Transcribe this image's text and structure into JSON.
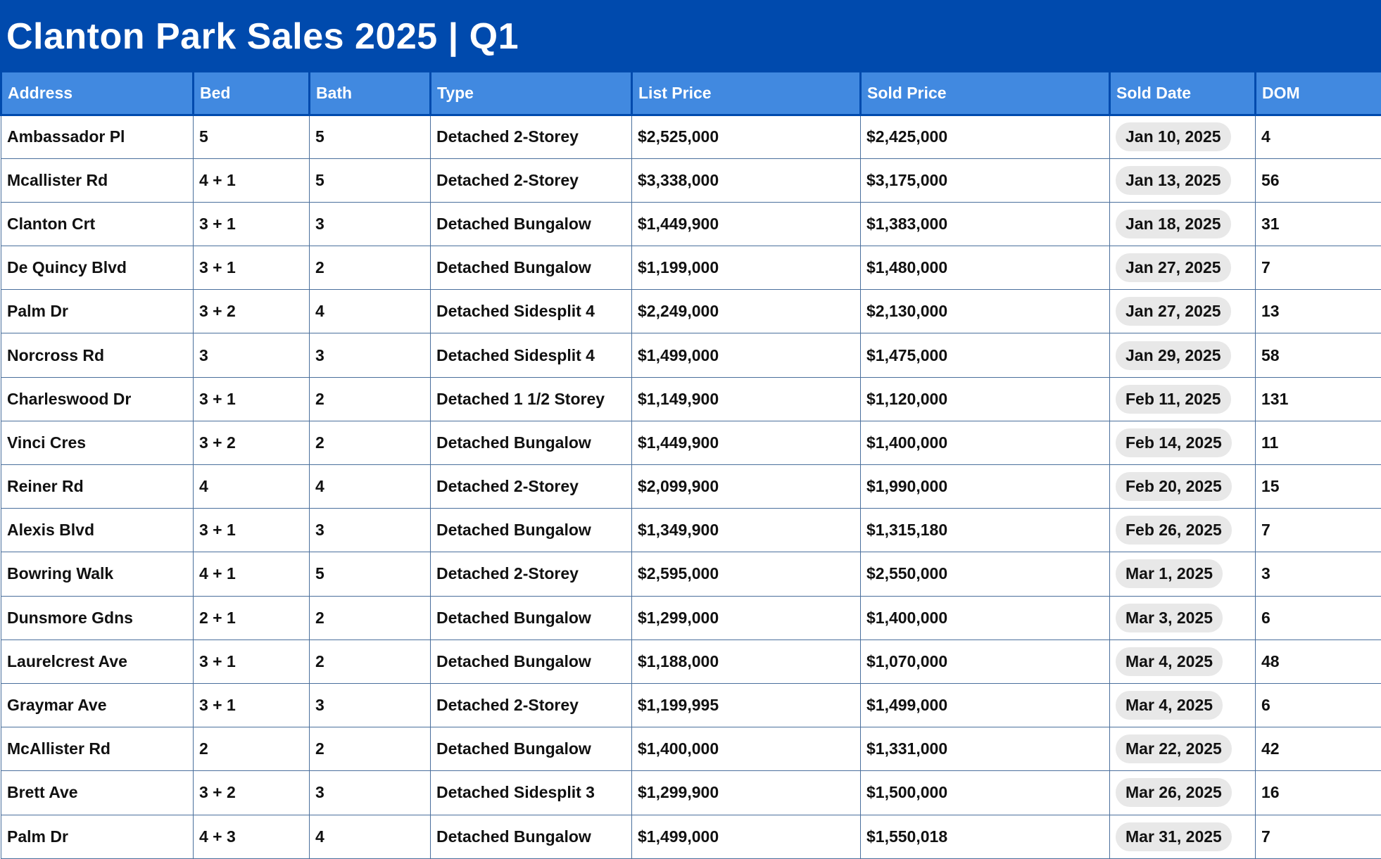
{
  "title": "Clanton Park Sales 2025 | Q1",
  "columns": [
    "Address",
    "Bed",
    "Bath",
    "Type",
    "List Price",
    "Sold Price",
    "Sold Date",
    "DOM"
  ],
  "rows": [
    [
      "Ambassador Pl",
      "5",
      "5",
      "Detached 2-Storey",
      "$2,525,000",
      "$2,425,000",
      "Jan 10, 2025",
      "4"
    ],
    [
      "Mcallister Rd",
      "4 + 1",
      "5",
      "Detached 2-Storey",
      "$3,338,000",
      "$3,175,000",
      "Jan 13, 2025",
      "56"
    ],
    [
      "Clanton Crt",
      "3 + 1",
      "3",
      "Detached Bungalow",
      "$1,449,900",
      "$1,383,000",
      "Jan 18, 2025",
      "31"
    ],
    [
      "De Quincy Blvd",
      "3 + 1",
      "2",
      "Detached Bungalow",
      "$1,199,000",
      "$1,480,000",
      "Jan 27, 2025",
      "7"
    ],
    [
      "Palm Dr",
      "3 + 2",
      "4",
      "Detached Sidesplit 4",
      "$2,249,000",
      "$2,130,000",
      "Jan 27, 2025",
      "13"
    ],
    [
      "Norcross Rd",
      "3",
      "3",
      "Detached Sidesplit 4",
      "$1,499,000",
      "$1,475,000",
      "Jan 29, 2025",
      "58"
    ],
    [
      "Charleswood Dr",
      "3 + 1",
      "2",
      "Detached 1 1/2 Storey",
      "$1,149,900",
      "$1,120,000",
      "Feb 11, 2025",
      "131"
    ],
    [
      "Vinci Cres",
      "3 + 2",
      "2",
      "Detached Bungalow",
      "$1,449,900",
      "$1,400,000",
      "Feb 14, 2025",
      "11"
    ],
    [
      "Reiner Rd",
      "4",
      "4",
      "Detached 2-Storey",
      "$2,099,900",
      "$1,990,000",
      "Feb 20, 2025",
      "15"
    ],
    [
      "Alexis Blvd",
      "3 + 1",
      "3",
      "Detached Bungalow",
      "$1,349,900",
      "$1,315,180",
      "Feb 26, 2025",
      "7"
    ],
    [
      "Bowring Walk",
      "4 + 1",
      "5",
      "Detached 2-Storey",
      "$2,595,000",
      "$2,550,000",
      "Mar 1, 2025",
      "3"
    ],
    [
      "Dunsmore Gdns",
      "2 + 1",
      "2",
      "Detached Bungalow",
      "$1,299,000",
      "$1,400,000",
      "Mar 3, 2025",
      "6"
    ],
    [
      "Laurelcrest Ave",
      "3 + 1",
      "2",
      "Detached Bungalow",
      "$1,188,000",
      "$1,070,000",
      "Mar 4, 2025",
      "48"
    ],
    [
      "Graymar Ave",
      "3 + 1",
      "3",
      "Detached 2-Storey",
      "$1,199,995",
      "$1,499,000",
      "Mar 4, 2025",
      "6"
    ],
    [
      "McAllister Rd",
      "2",
      "2",
      "Detached Bungalow",
      "$1,400,000",
      "$1,331,000",
      "Mar 22, 2025",
      "42"
    ],
    [
      "Brett Ave",
      "3 + 2",
      "3",
      "Detached Sidesplit 3",
      "$1,299,900",
      "$1,500,000",
      "Mar 26, 2025",
      "16"
    ],
    [
      "Palm Dr",
      "4 + 3",
      "4",
      "Detached Bungalow",
      "$1,499,000",
      "$1,550,018",
      "Mar 31, 2025",
      "7"
    ]
  ]
}
